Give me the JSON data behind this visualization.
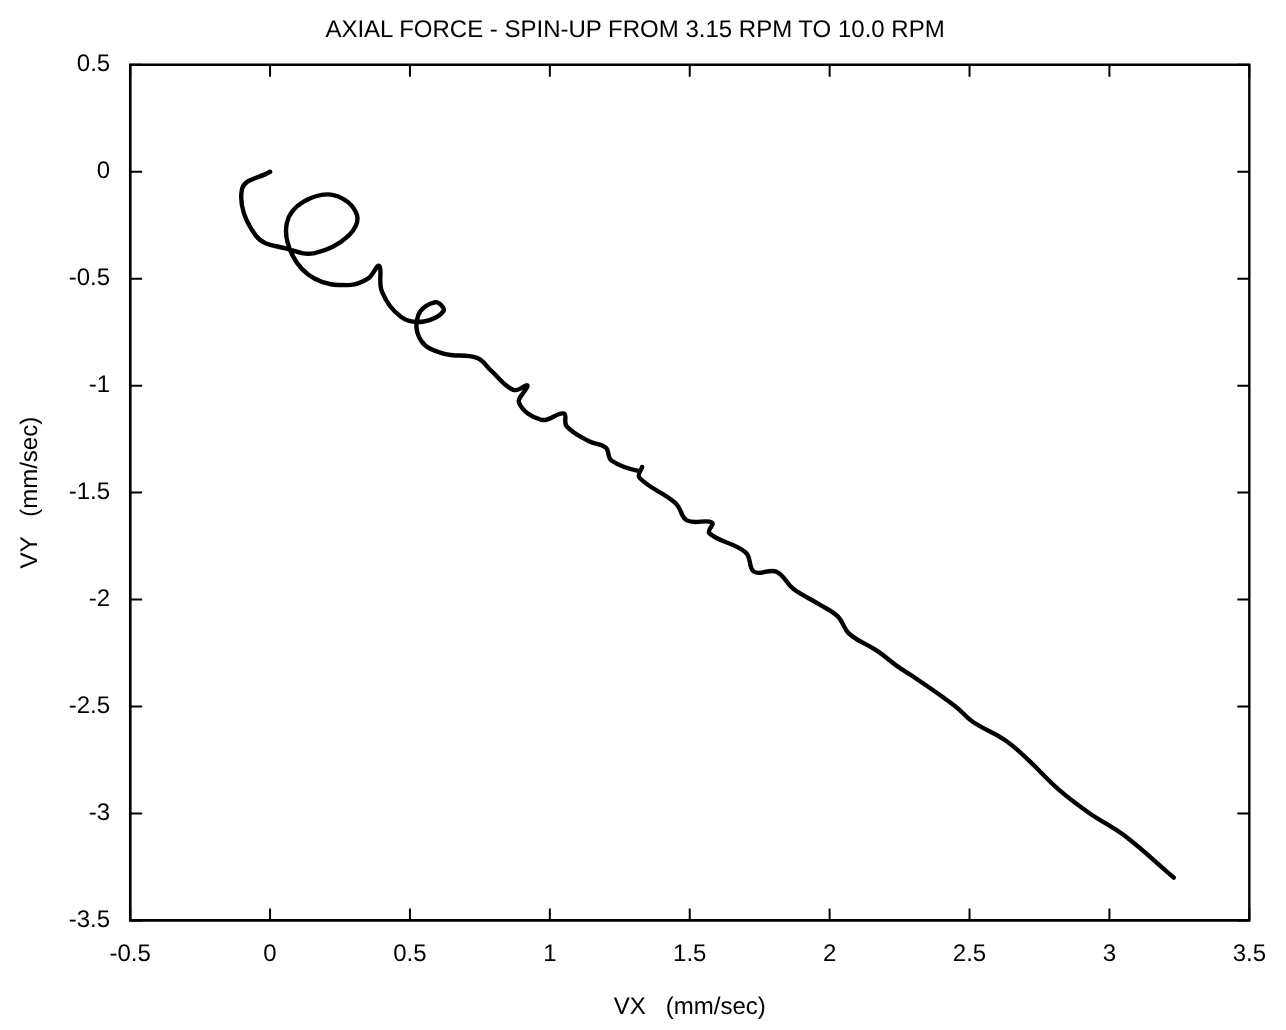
{
  "chart_data": {
    "type": "line",
    "title": "AXIAL FORCE - SPIN-UP FROM 3.15 RPM TO 10.0 RPM",
    "xlabel": "VX   (mm/sec)",
    "ylabel": "VY   (mm/sec)",
    "xlim": [
      -0.5,
      3.5
    ],
    "ylim": [
      -3.5,
      0.5
    ],
    "xticks": [
      -0.5,
      0,
      0.5,
      1,
      1.5,
      2,
      2.5,
      3,
      3.5
    ],
    "yticks": [
      -3.5,
      -3,
      -2.5,
      -2,
      -1.5,
      -1,
      -0.5,
      0,
      0.5
    ],
    "grid": false,
    "legend": false,
    "marker": "none",
    "line_style": "solid",
    "series": [
      {
        "color": "#000000",
        "x": [
          0,
          -0.1,
          -0.05,
          0.06,
          0.16,
          0.28,
          0.31,
          0.23,
          0.12,
          0.06,
          0.08,
          0.16,
          0.28,
          0.35,
          0.39,
          0.4,
          0.47,
          0.55,
          0.62,
          0.59,
          0.53,
          0.54,
          0.62,
          0.74,
          0.79,
          0.87,
          0.92,
          0.89,
          0.97,
          1.05,
          1.06,
          1.14,
          1.2,
          1.22,
          1.32,
          1.33,
          1.32,
          1.45,
          1.49,
          1.58,
          1.57,
          1.7,
          1.73,
          1.81,
          1.87,
          1.96,
          2.03,
          2.07,
          2.17,
          2.24,
          2.31,
          2.45,
          2.51,
          2.63,
          2.71,
          2.82,
          2.93,
          3.05,
          3.23
        ],
        "values": [
          0,
          -0.08,
          -0.3,
          -0.36,
          -0.38,
          -0.3,
          -0.2,
          -0.11,
          -0.14,
          -0.24,
          -0.39,
          -0.5,
          -0.53,
          -0.5,
          -0.44,
          -0.56,
          -0.68,
          -0.7,
          -0.65,
          -0.61,
          -0.67,
          -0.79,
          -0.85,
          -0.87,
          -0.93,
          -1.02,
          -1,
          -1.08,
          -1.16,
          -1.13,
          -1.19,
          -1.26,
          -1.29,
          -1.35,
          -1.4,
          -1.38,
          -1.43,
          -1.55,
          -1.63,
          -1.64,
          -1.69,
          -1.78,
          -1.87,
          -1.87,
          -1.95,
          -2.02,
          -2.08,
          -2.16,
          -2.24,
          -2.31,
          -2.37,
          -2.5,
          -2.57,
          -2.66,
          -2.75,
          -2.89,
          -3,
          -3.1,
          -3.3
        ]
      }
    ]
  }
}
